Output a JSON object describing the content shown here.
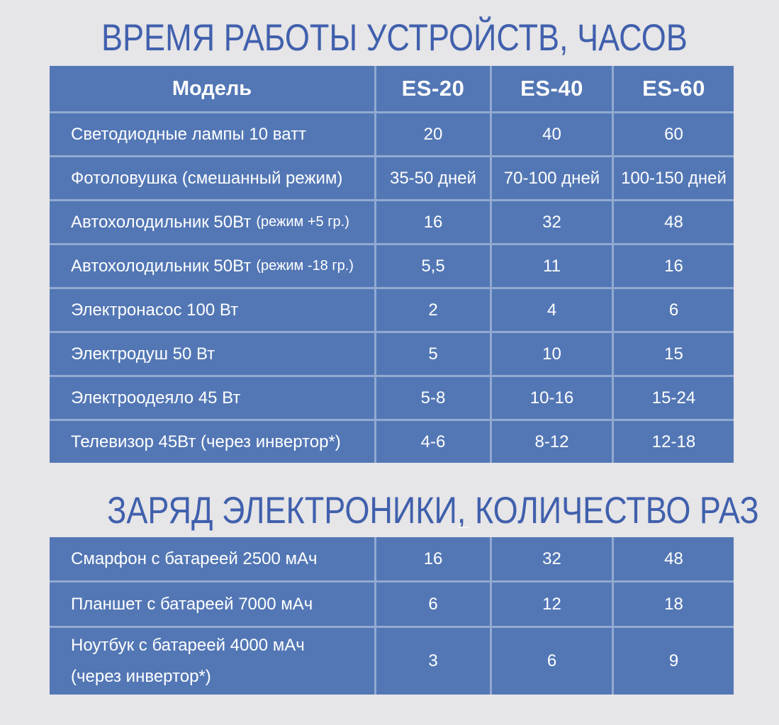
{
  "colors": {
    "background": "#e6e5e7",
    "cell_blue": "#5377b5",
    "divider_light_blue": "#92aad1",
    "title_blue": "#4060ad",
    "cell_text": "#ffffff"
  },
  "runtime_table": {
    "title": "ВРЕМЯ РАБОТЫ УСТРОЙСТВ, ЧАСОВ",
    "header": {
      "model_label": "Модель",
      "models": [
        "ES-20",
        "ES-40",
        "ES-60"
      ]
    },
    "rows": [
      {
        "label": "Светодиодные лампы 10 ватт",
        "values": [
          "20",
          "40",
          "60"
        ]
      },
      {
        "label": "Фотоловушка (смешанный режим)",
        "values": [
          "35-50 дней",
          "70-100 дней",
          "100-150 дней"
        ]
      },
      {
        "label": "Автохолодильник 50Вт",
        "note": "(режим +5 гр.)",
        "values": [
          "16",
          "32",
          "48"
        ]
      },
      {
        "label": "Автохолодильник 50Вт",
        "note": "(режим -18 гр.)",
        "values": [
          "5,5",
          "11",
          "16"
        ]
      },
      {
        "label": "Электронасос 100 Вт",
        "values": [
          "2",
          "4",
          "6"
        ]
      },
      {
        "label": "Электродуш 50 Вт",
        "values": [
          "5",
          "10",
          "15"
        ]
      },
      {
        "label": "Электроодеяло 45 Вт",
        "values": [
          "5-8",
          "10-16",
          "15-24"
        ]
      },
      {
        "label": "Телевизор 45Вт (через инвертор*)",
        "values": [
          "4-6",
          "8-12",
          "12-18"
        ]
      }
    ]
  },
  "charge_table": {
    "title": "ЗАРЯД ЭЛЕКТРОНИКИ, КОЛИЧЕСТВО РАЗ",
    "rows": [
      {
        "label": "Смарфон с батареей 2500 мАч",
        "values": [
          "16",
          "32",
          "48"
        ]
      },
      {
        "label": "Планшет с батареей 7000 мАч",
        "values": [
          "6",
          "12",
          "18"
        ]
      },
      {
        "label": "Ноутбук с батареей 4000 мАч",
        "sublabel": "(через инвертор*)",
        "values": [
          "3",
          "6",
          "9"
        ]
      }
    ]
  }
}
